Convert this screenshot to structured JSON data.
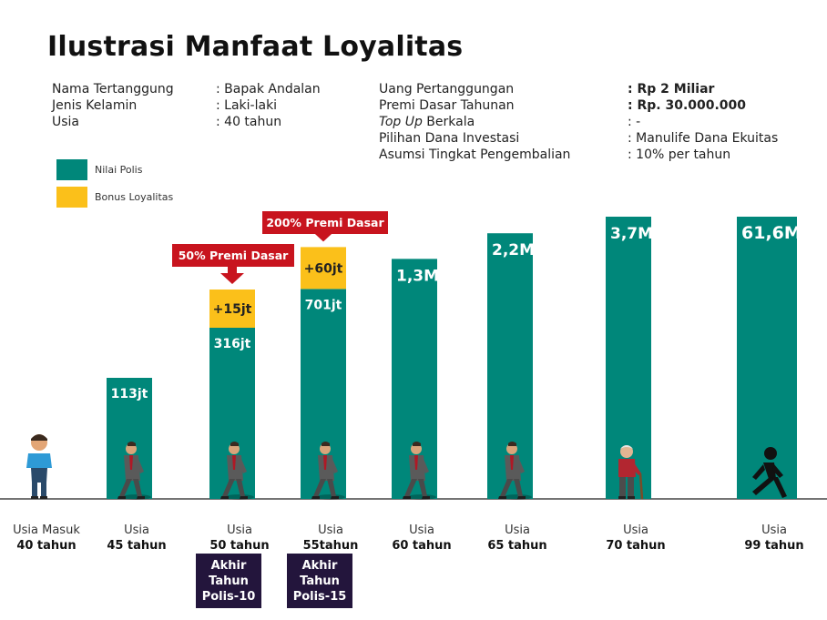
{
  "title": "Ilustrasi Manfaat Loyalitas",
  "info_left": [
    {
      "label": "Nama Tertanggung",
      "value": ": Bapak Andalan"
    },
    {
      "label": "Jenis Kelamin",
      "value": ": Laki-laki"
    },
    {
      "label": "Usia",
      "value": ": 40 tahun"
    }
  ],
  "info_right": [
    {
      "label": "Uang Pertanggungan",
      "value": ": Rp 2 Miliar",
      "bold": true
    },
    {
      "label": "Premi Dasar Tahunan",
      "value": ": Rp. 30.000.000",
      "bold": true
    },
    {
      "label_italic": "Top Up",
      "label": " Berkala",
      "value": ": -"
    },
    {
      "label": "Pilihan Dana Investasi",
      "value": ": Manulife Dana Ekuitas"
    },
    {
      "label": "Asumsi Tingkat Pengembalian",
      "value": ": 10% per tahun"
    }
  ],
  "legend": [
    {
      "name": "Nilai Polis",
      "color": "#00877a"
    },
    {
      "name": "Bonus Loyalitas",
      "color": "#fbc01a"
    }
  ],
  "chart_data": {
    "type": "bar",
    "categories": [
      "Usia Masuk 40 tahun",
      "Usia 45 tahun",
      "Usia 50 tahun",
      "Usia 55tahun",
      "Usia 60 tahun",
      "Usia 65 tahun",
      "Usia 70 tahun",
      "Usia 99 tahun"
    ],
    "series": [
      {
        "name": "Nilai Polis",
        "values": [
          0,
          113,
          316,
          701,
          1300,
          2200,
          3700,
          61600
        ],
        "labels": [
          "",
          "113jt",
          "316jt",
          "701jt",
          "1,3M",
          "2,2M",
          "3,7M",
          "61,6M"
        ]
      },
      {
        "name": "Bonus Loyalitas",
        "values": [
          0,
          0,
          15,
          60,
          0,
          0,
          0,
          0
        ],
        "labels": [
          "",
          "",
          "+15jt",
          "+60jt",
          "",
          "",
          "",
          ""
        ]
      }
    ],
    "axis_labels": [
      {
        "top": "Usia Masuk",
        "bottom": "40 tahun"
      },
      {
        "top": "Usia",
        "bottom": "45 tahun"
      },
      {
        "top": "Usia",
        "bottom": "50 tahun"
      },
      {
        "top": "Usia",
        "bottom": "55tahun"
      },
      {
        "top": "Usia",
        "bottom": "60 tahun"
      },
      {
        "top": "Usia",
        "bottom": "65 tahun"
      },
      {
        "top": "Usia",
        "bottom": "70 tahun"
      },
      {
        "top": "Usia",
        "bottom": "99 tahun"
      }
    ],
    "callouts": [
      {
        "category_index": 2,
        "text": "50% Premi Dasar",
        "note": [
          "Akhir",
          "Tahun",
          "Polis-10"
        ]
      },
      {
        "category_index": 3,
        "text": "200% Premi Dasar",
        "note": [
          "Akhir",
          "Tahun",
          "Polis-15"
        ]
      }
    ],
    "value_unit": "juta Rupiah",
    "scale": "non-linear (illustrative)",
    "grid": false,
    "legend_position": "top-left",
    "colors": {
      "nilai_polis": "#00877a",
      "bonus": "#fbc01a",
      "callout": "#c8141e",
      "note_box": "#23153c"
    }
  }
}
